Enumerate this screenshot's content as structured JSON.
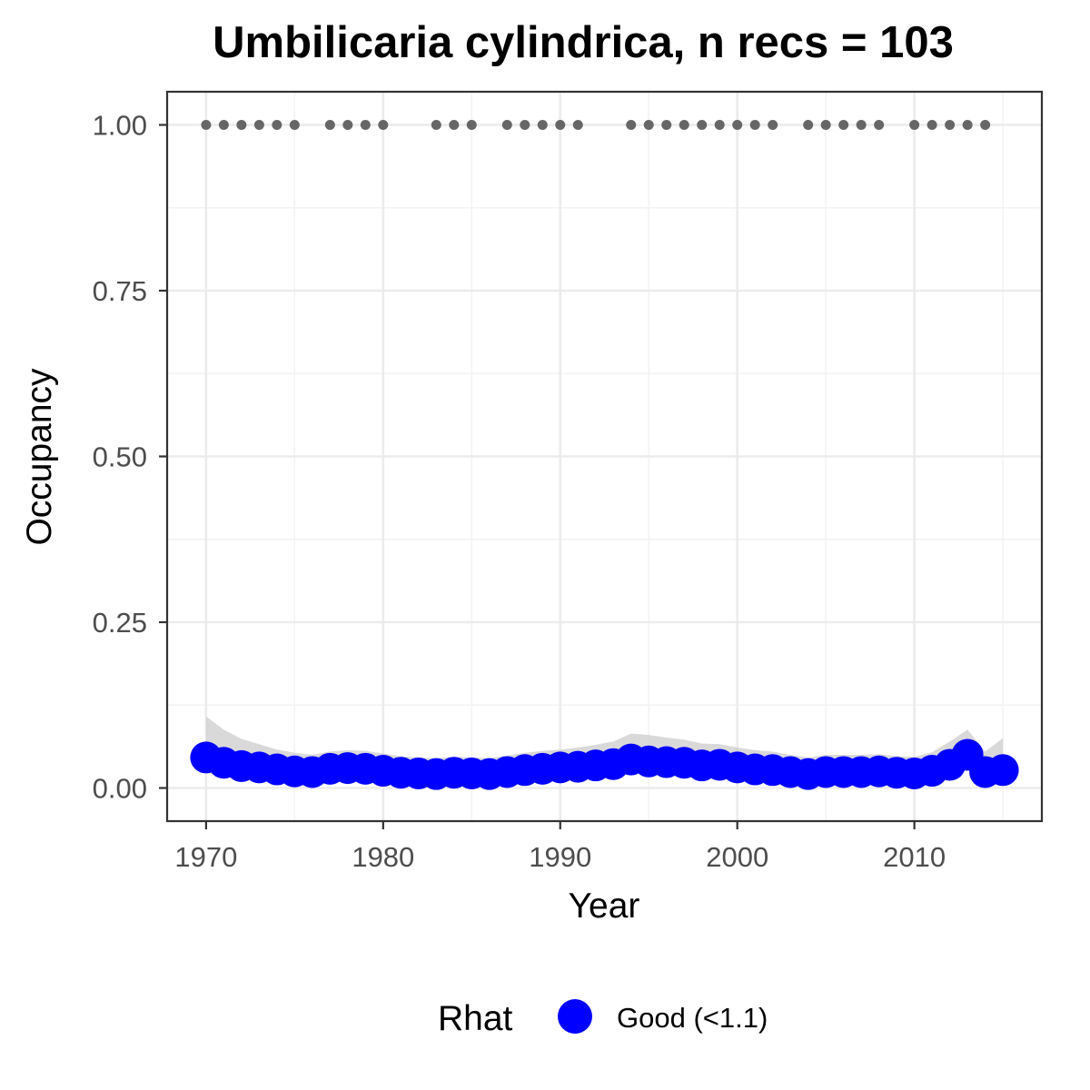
{
  "chart_data": {
    "type": "line",
    "title": "Umbilicaria cylindrica, n recs = 103",
    "xlabel": "Year",
    "ylabel": "Occupancy",
    "xlim": [
      1967.8,
      2017.2
    ],
    "ylim": [
      -0.05,
      1.05
    ],
    "x_ticks": [
      1970,
      1980,
      1990,
      2000,
      2010
    ],
    "x_tick_labels": [
      "1970",
      "1980",
      "1990",
      "2000",
      "2010"
    ],
    "y_ticks": [
      0,
      0.25,
      0.5,
      0.75,
      1.0
    ],
    "y_tick_labels": [
      "0.00",
      "0.25",
      "0.50",
      "0.75",
      "1.00"
    ],
    "grid": true,
    "series": [
      {
        "name": "Occupancy estimate",
        "color": "#0000ff",
        "x": [
          1970,
          1971,
          1972,
          1973,
          1974,
          1975,
          1976,
          1977,
          1978,
          1979,
          1980,
          1981,
          1982,
          1983,
          1984,
          1985,
          1986,
          1987,
          1988,
          1989,
          1990,
          1991,
          1992,
          1993,
          1994,
          1995,
          1996,
          1997,
          1998,
          1999,
          2000,
          2001,
          2002,
          2003,
          2004,
          2005,
          2006,
          2007,
          2008,
          2009,
          2010,
          2011,
          2012,
          2013,
          2014,
          2015
        ],
        "y": [
          0.046,
          0.038,
          0.033,
          0.031,
          0.028,
          0.025,
          0.024,
          0.029,
          0.03,
          0.029,
          0.026,
          0.023,
          0.022,
          0.021,
          0.023,
          0.022,
          0.021,
          0.024,
          0.027,
          0.029,
          0.031,
          0.032,
          0.034,
          0.036,
          0.043,
          0.04,
          0.039,
          0.038,
          0.034,
          0.035,
          0.031,
          0.028,
          0.027,
          0.024,
          0.021,
          0.024,
          0.024,
          0.024,
          0.025,
          0.023,
          0.022,
          0.026,
          0.035,
          0.05,
          0.024,
          0.027
        ]
      },
      {
        "name": "Credible interval",
        "color": "#cccccc",
        "x": [
          1970,
          1971,
          1972,
          1973,
          1974,
          1975,
          1976,
          1977,
          1978,
          1979,
          1980,
          1981,
          1982,
          1983,
          1984,
          1985,
          1986,
          1987,
          1988,
          1989,
          1990,
          1991,
          1992,
          1993,
          1994,
          1995,
          1996,
          1997,
          1998,
          1999,
          2000,
          2001,
          2002,
          2003,
          2004,
          2005,
          2006,
          2007,
          2008,
          2009,
          2010,
          2011,
          2012,
          2013,
          2014,
          2015
        ],
        "lower": [
          0.022,
          0.02,
          0.019,
          0.018,
          0.017,
          0.016,
          0.016,
          0.017,
          0.018,
          0.018,
          0.017,
          0.015,
          0.014,
          0.014,
          0.015,
          0.014,
          0.014,
          0.016,
          0.017,
          0.018,
          0.019,
          0.02,
          0.021,
          0.022,
          0.026,
          0.025,
          0.024,
          0.023,
          0.021,
          0.021,
          0.019,
          0.017,
          0.016,
          0.015,
          0.013,
          0.015,
          0.015,
          0.015,
          0.015,
          0.014,
          0.014,
          0.016,
          0.02,
          0.027,
          0.014,
          0.015
        ],
        "upper": [
          0.108,
          0.088,
          0.074,
          0.066,
          0.058,
          0.053,
          0.05,
          0.055,
          0.057,
          0.056,
          0.052,
          0.048,
          0.046,
          0.045,
          0.047,
          0.046,
          0.045,
          0.049,
          0.053,
          0.056,
          0.058,
          0.061,
          0.065,
          0.07,
          0.082,
          0.08,
          0.076,
          0.073,
          0.067,
          0.066,
          0.061,
          0.057,
          0.055,
          0.05,
          0.046,
          0.05,
          0.05,
          0.05,
          0.051,
          0.048,
          0.047,
          0.054,
          0.07,
          0.088,
          0.055,
          0.075
        ]
      },
      {
        "name": "Records",
        "color": "#666666",
        "x": [
          1970,
          1971,
          1972,
          1973,
          1974,
          1975,
          1977,
          1978,
          1979,
          1980,
          1983,
          1984,
          1985,
          1987,
          1988,
          1989,
          1990,
          1991,
          1994,
          1995,
          1996,
          1997,
          1998,
          1999,
          2000,
          2001,
          2002,
          2004,
          2005,
          2006,
          2007,
          2008,
          2010,
          2011,
          2012,
          2013,
          2014
        ],
        "y": 1.0
      }
    ],
    "legend": {
      "title": "Rhat",
      "position": "bottom",
      "items": [
        {
          "label": "Good (<1.1)",
          "color": "#0000ff"
        }
      ]
    }
  }
}
